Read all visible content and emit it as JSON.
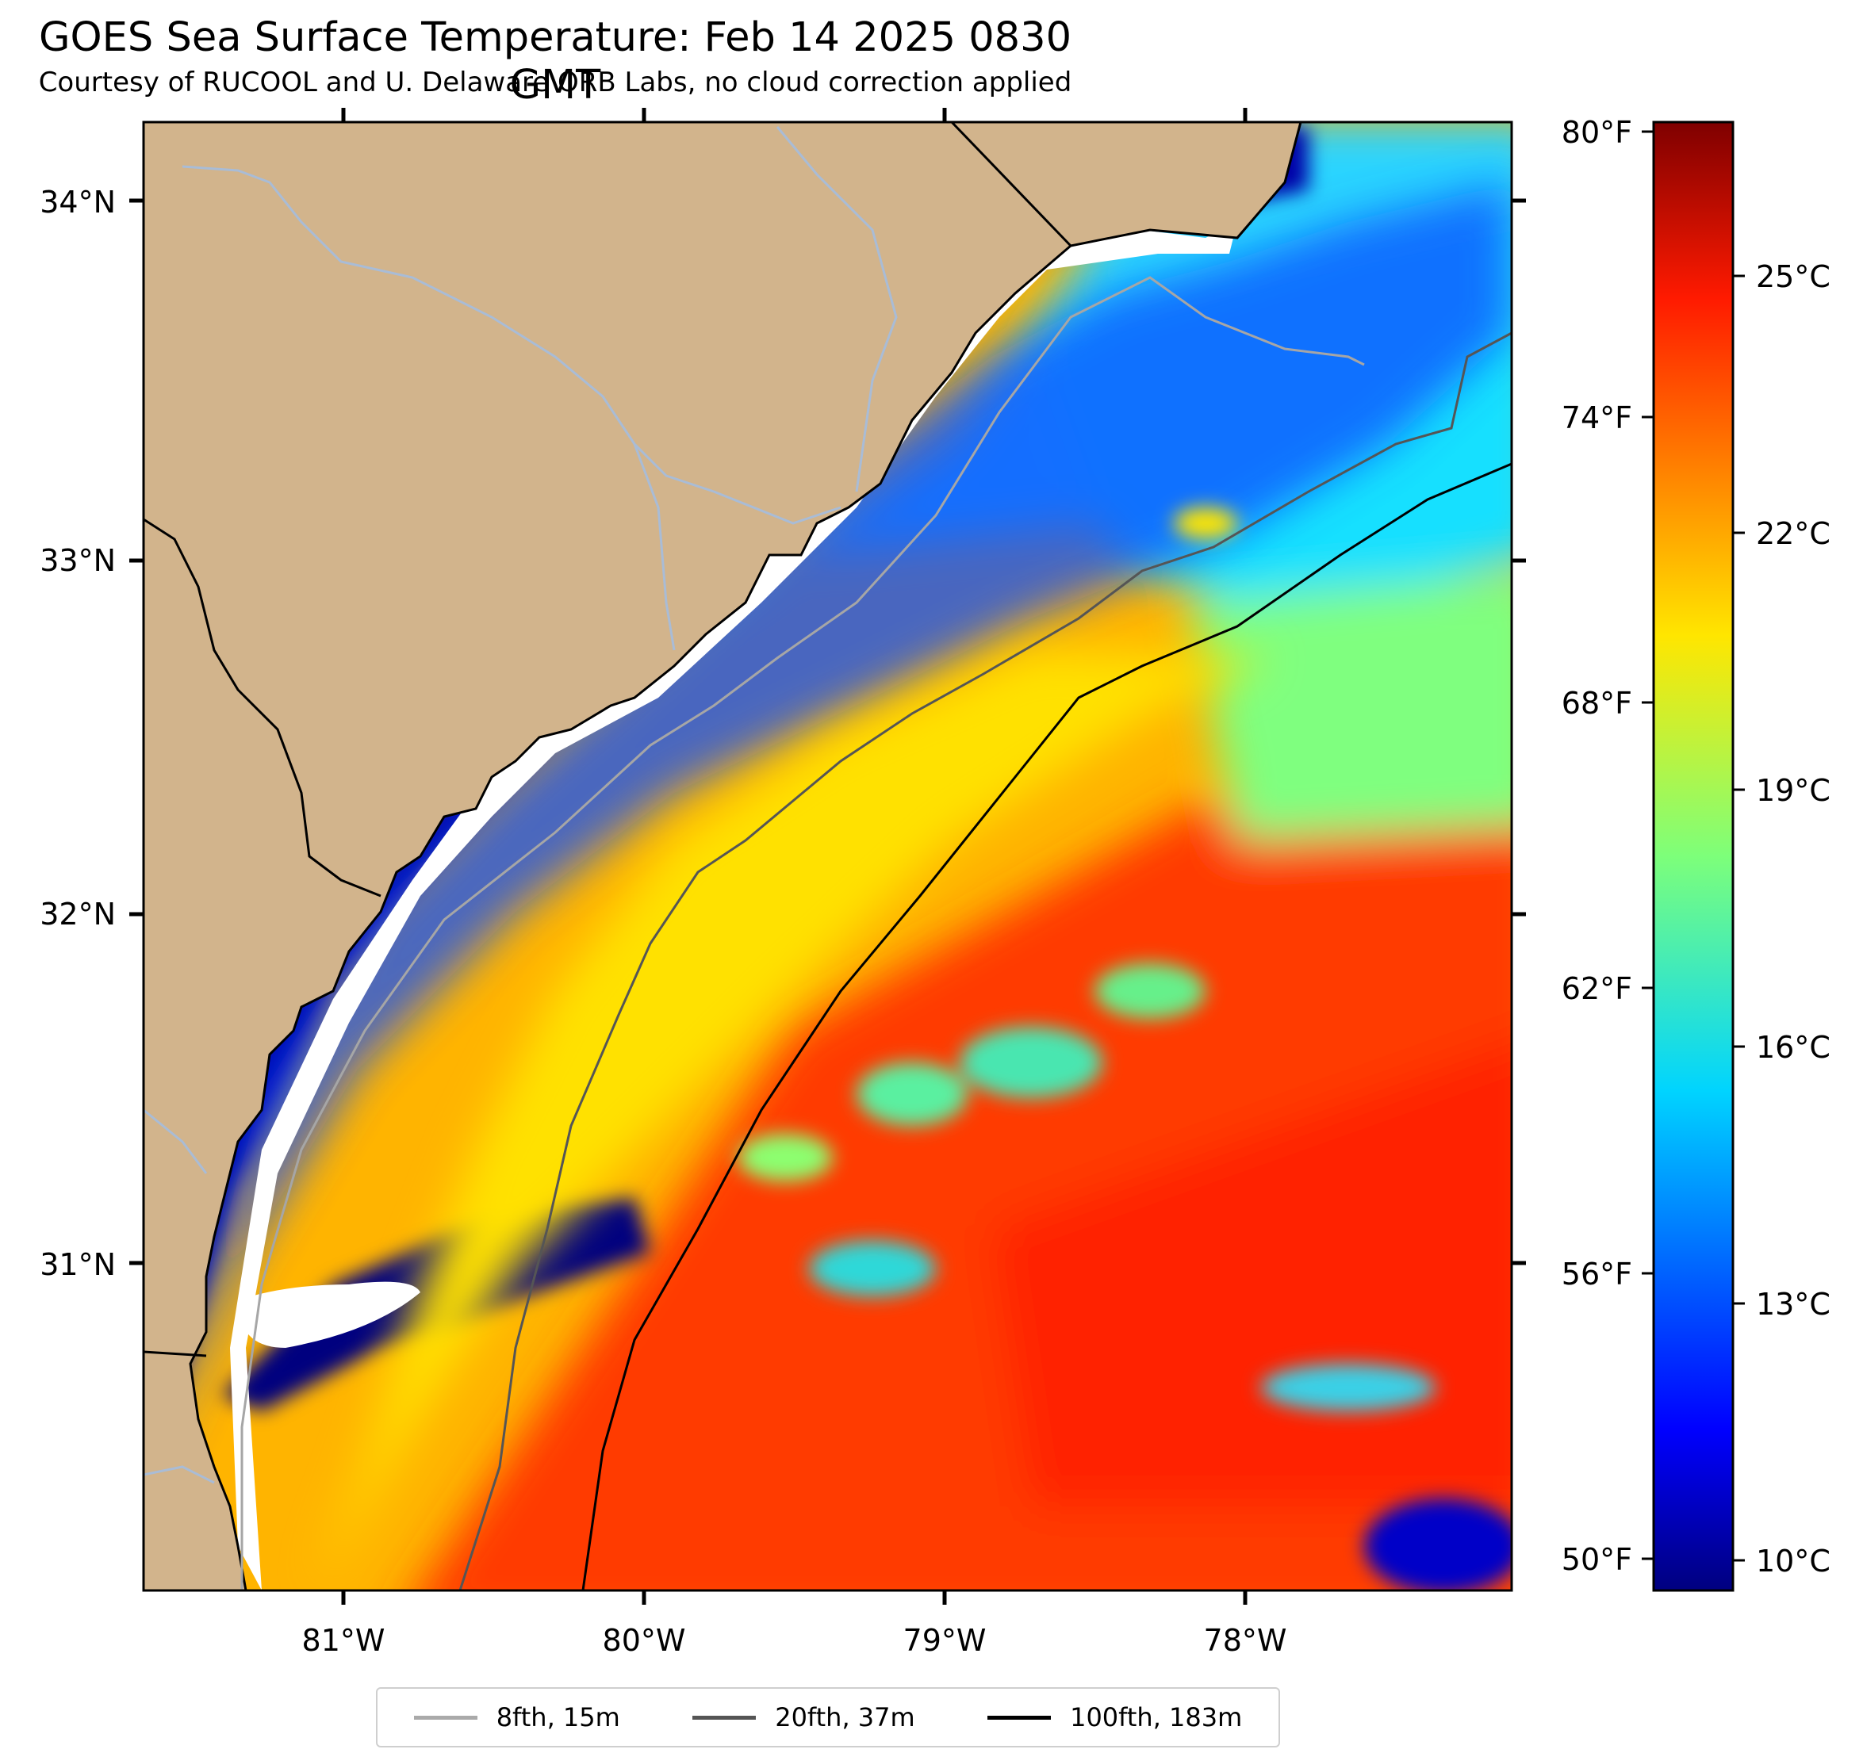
{
  "title": "GOES Sea Surface Temperature: Feb 14 2025 0830 GMT",
  "subtitle": "Courtesy of RUCOOL and U. Delaware ORB Labs, no cloud correction applied",
  "axes": {
    "lat_labels": [
      "34°N",
      "33°N",
      "32°N",
      "31°N"
    ],
    "lon_labels": [
      "81°W",
      "80°W",
      "79°W",
      "78°W"
    ]
  },
  "colorbar": {
    "f_labels": [
      "80°F",
      "74°F",
      "68°F",
      "62°F",
      "56°F",
      "50°F"
    ],
    "c_labels": [
      "25°C",
      "22°C",
      "19°C",
      "16°C",
      "13°C",
      "10°C"
    ]
  },
  "legend": [
    {
      "label": "8fth, 15m",
      "color": "#aaaaaa"
    },
    {
      "label": "20fth, 37m",
      "color": "#555555"
    },
    {
      "label": "100fth, 183m",
      "color": "#000000"
    }
  ],
  "colors": {
    "land": "#d2b48c",
    "river": "#a9bcd6",
    "cold": "#00007f",
    "warm": "#ff3000"
  }
}
